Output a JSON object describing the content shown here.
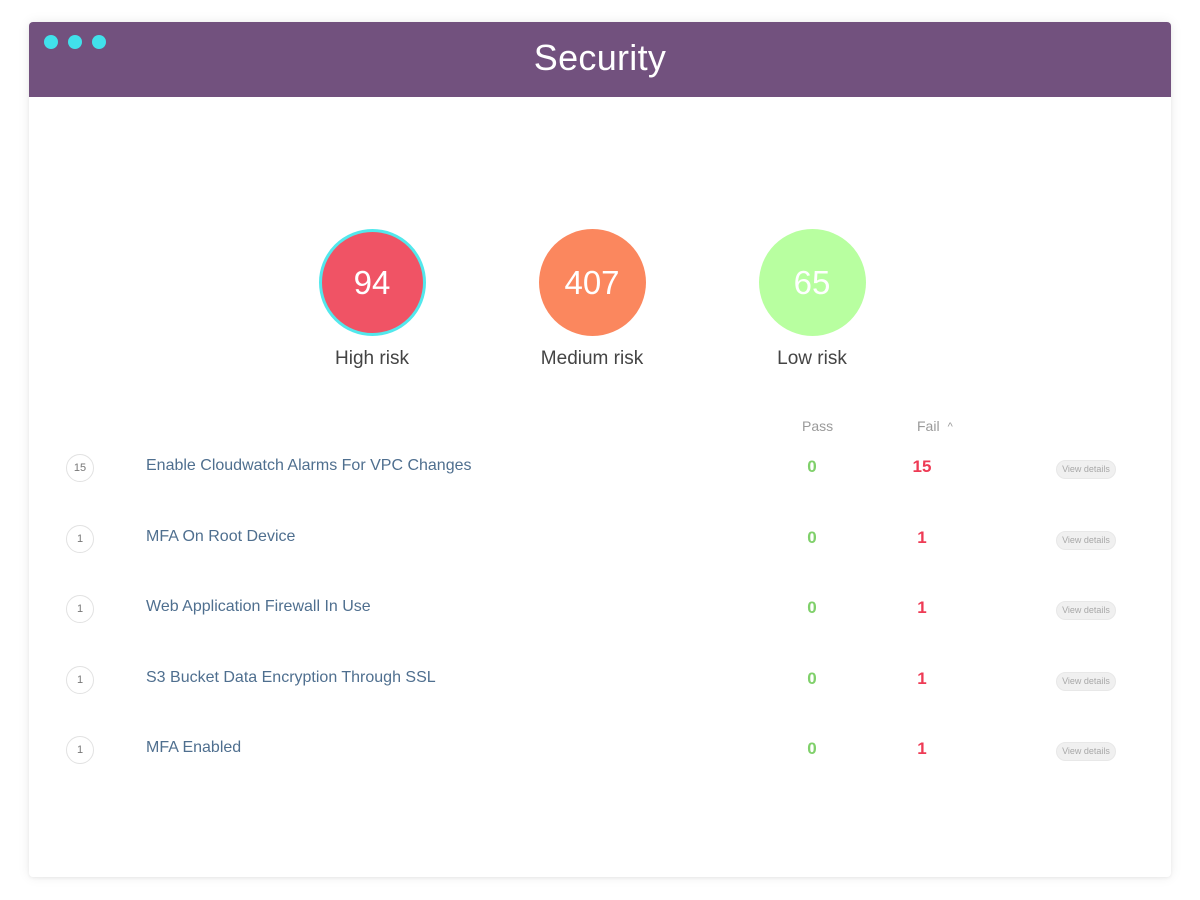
{
  "window": {
    "title": "Security",
    "controls": [
      {
        "name": "close",
        "color": "#41e1eb"
      },
      {
        "name": "minimize",
        "color": "#41e1eb"
      },
      {
        "name": "maximize",
        "color": "#41e1eb"
      }
    ],
    "header_color": "#72517e"
  },
  "risk_summary": [
    {
      "value": "94",
      "label": "High risk",
      "color": "#f05365",
      "selected": true,
      "ring_color": "#52e8ec"
    },
    {
      "value": "407",
      "label": "Medium risk",
      "color": "#fb875e",
      "selected": false
    },
    {
      "value": "65",
      "label": "Low risk",
      "color": "#b8ffa0",
      "selected": false
    }
  ],
  "table": {
    "columns": {
      "pass": "Pass",
      "fail": "Fail"
    },
    "sort": {
      "column": "fail",
      "direction": "ascending",
      "icon": "chevron-up-icon"
    },
    "pass_color": "#7fd06a",
    "fail_color": "#ee3b55",
    "rows": [
      {
        "count": "15",
        "name": "Enable Cloudwatch Alarms For VPC Changes",
        "pass": "0",
        "fail": "15",
        "action": "View details"
      },
      {
        "count": "1",
        "name": "MFA On Root Device",
        "pass": "0",
        "fail": "1",
        "action": "View details"
      },
      {
        "count": "1",
        "name": "Web Application Firewall In Use",
        "pass": "0",
        "fail": "1",
        "action": "View details"
      },
      {
        "count": "1",
        "name": "S3 Bucket Data Encryption Through SSL",
        "pass": "0",
        "fail": "1",
        "action": "View details"
      },
      {
        "count": "1",
        "name": "MFA Enabled",
        "pass": "0",
        "fail": "1",
        "action": "View details"
      }
    ]
  }
}
